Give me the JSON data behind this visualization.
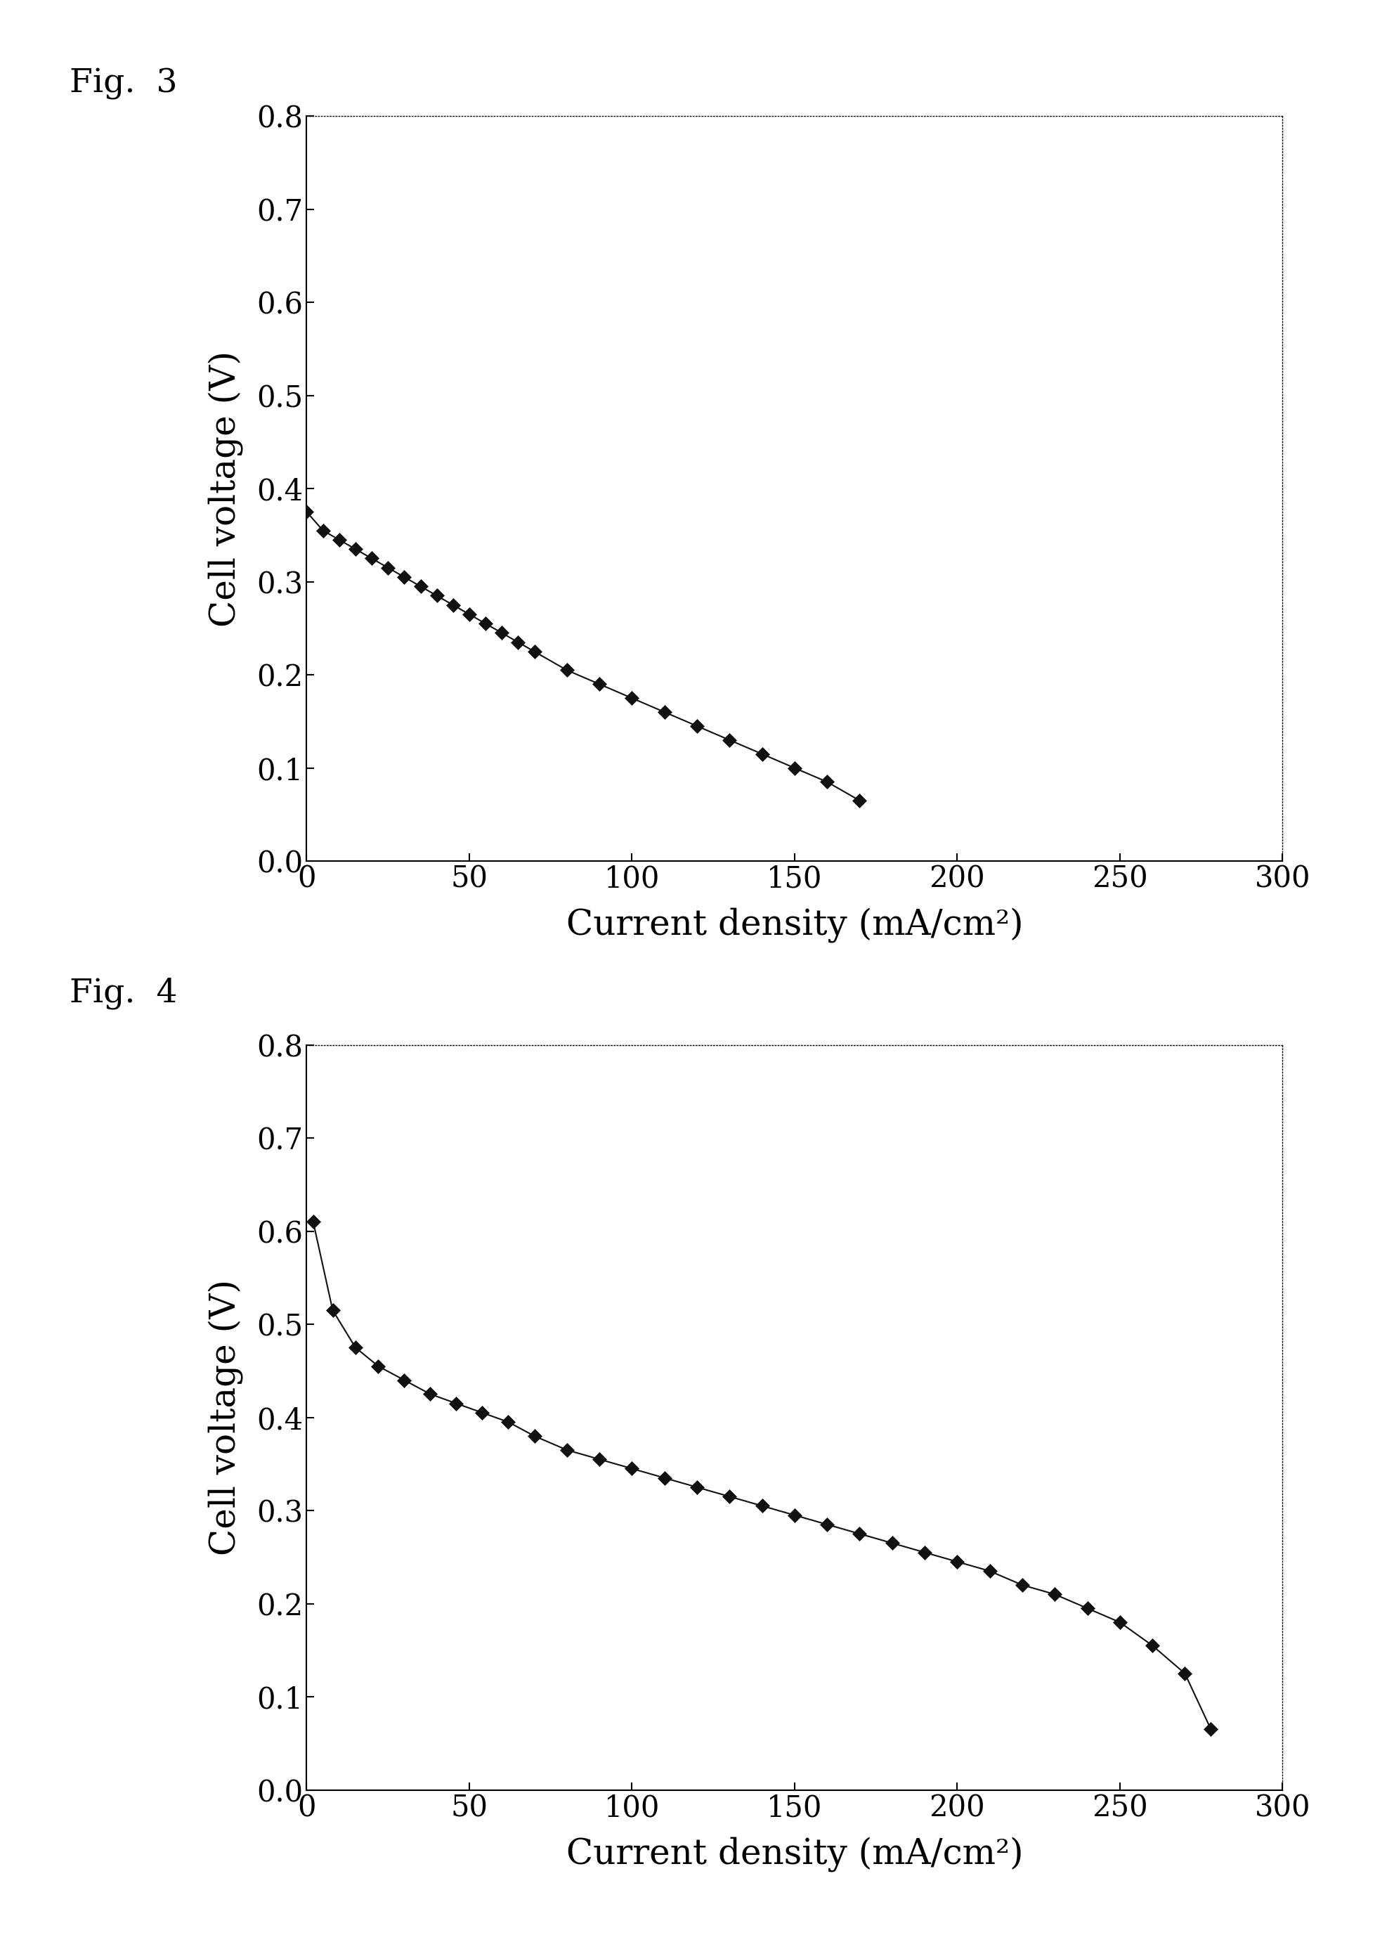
{
  "fig3_x": [
    0,
    5,
    10,
    15,
    20,
    25,
    30,
    35,
    40,
    45,
    50,
    55,
    60,
    65,
    70,
    80,
    90,
    100,
    110,
    120,
    130,
    140,
    150,
    160,
    170
  ],
  "fig3_y": [
    0.375,
    0.355,
    0.345,
    0.335,
    0.325,
    0.315,
    0.305,
    0.295,
    0.285,
    0.275,
    0.265,
    0.255,
    0.245,
    0.235,
    0.225,
    0.205,
    0.19,
    0.175,
    0.16,
    0.145,
    0.13,
    0.115,
    0.1,
    0.085,
    0.065
  ],
  "fig4_x": [
    2,
    8,
    15,
    22,
    30,
    38,
    46,
    54,
    62,
    70,
    80,
    90,
    100,
    110,
    120,
    130,
    140,
    150,
    160,
    170,
    180,
    190,
    200,
    210,
    220,
    230,
    240,
    250,
    260,
    270,
    278
  ],
  "fig4_y": [
    0.61,
    0.515,
    0.475,
    0.455,
    0.44,
    0.425,
    0.415,
    0.405,
    0.395,
    0.38,
    0.365,
    0.355,
    0.345,
    0.335,
    0.325,
    0.315,
    0.305,
    0.295,
    0.285,
    0.275,
    0.265,
    0.255,
    0.245,
    0.235,
    0.22,
    0.21,
    0.195,
    0.18,
    0.155,
    0.125,
    0.065
  ],
  "xlabel": "Current density (mA/cm²)",
  "ylabel": "Cell voltage (V)",
  "xlim": [
    0,
    300
  ],
  "ylim": [
    0,
    0.8
  ],
  "xticks": [
    0,
    50,
    100,
    150,
    200,
    250,
    300
  ],
  "yticks": [
    0,
    0.1,
    0.2,
    0.3,
    0.4,
    0.5,
    0.6,
    0.7,
    0.8
  ],
  "fig3_label": "Fig.  3",
  "fig4_label": "Fig.  4",
  "marker_color": "#111111",
  "line_color": "#111111",
  "bg_color": "#ffffff",
  "label_fontsize": 36,
  "tick_fontsize": 30,
  "figlabel_fontsize": 34
}
